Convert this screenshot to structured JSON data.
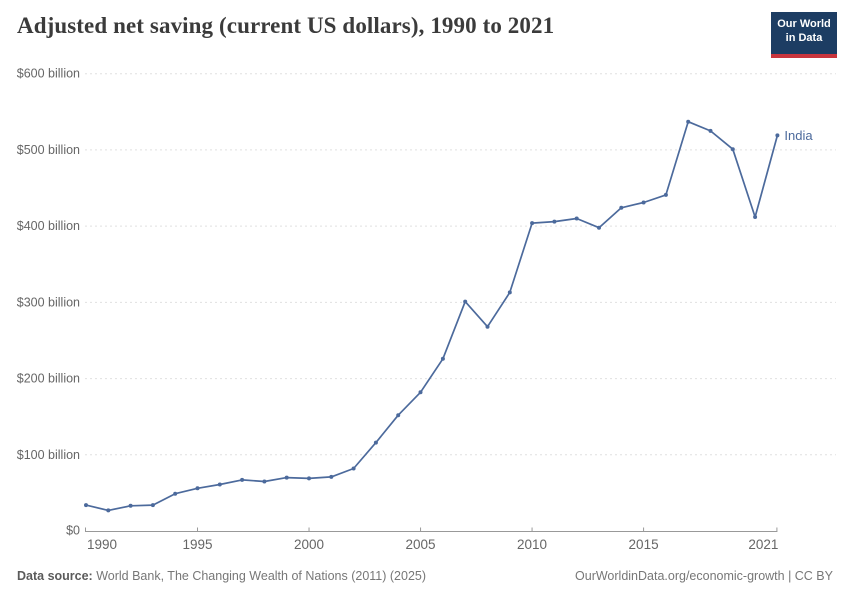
{
  "header": {
    "title": "Adjusted net saving (current US dollars), 1990 to 2021",
    "logo": {
      "line1": "Our World",
      "line2": "in Data",
      "bg_color": "#1d3d63",
      "accent_color": "#c9353d"
    }
  },
  "chart_data": {
    "type": "line",
    "title": "Adjusted net saving (current US dollars), 1990 to 2021",
    "series": [
      {
        "name": "India",
        "x": [
          1990,
          1991,
          1992,
          1993,
          1994,
          1995,
          1996,
          1997,
          1998,
          1999,
          2000,
          2001,
          2002,
          2003,
          2004,
          2005,
          2006,
          2007,
          2008,
          2009,
          2010,
          2011,
          2012,
          2013,
          2014,
          2015,
          2016,
          2017,
          2018,
          2019,
          2020,
          2021
        ],
        "values_billion_usd": [
          34,
          27,
          33,
          34,
          49,
          56,
          61,
          67,
          65,
          70,
          69,
          71,
          82,
          116,
          152,
          182,
          226,
          301,
          268,
          313,
          404,
          406,
          410,
          398,
          424,
          431,
          441,
          537,
          525,
          501,
          412,
          519
        ]
      }
    ],
    "ylabel": "",
    "xlabel": "",
    "ylim": [
      0,
      600
    ],
    "yticks": [
      0,
      100,
      200,
      300,
      400,
      500,
      600
    ],
    "ytick_labels": [
      "$0",
      "$100 billion",
      "$200 billion",
      "$300 billion",
      "$400 billion",
      "$500 billion",
      "$600 billion"
    ],
    "xticks": [
      1990,
      1995,
      2000,
      2005,
      2010,
      2015,
      2021
    ],
    "xtick_labels": [
      "1990",
      "1995",
      "2000",
      "2005",
      "2010",
      "2015",
      "2021"
    ],
    "grid": "horizontal-dashed",
    "legend_position": "end-of-line-label",
    "line_color": "#4c6a9c",
    "grid_color": "#e0e0e0",
    "axis_color": "#999999",
    "tick_label_color": "#666666",
    "end_label": "India"
  },
  "footer": {
    "datasource_label": "Data source:",
    "datasource_text": " World Bank, The Changing Wealth of Nations (2011) (2025)",
    "link": "OurWorldinData.org/economic-growth | CC BY"
  }
}
